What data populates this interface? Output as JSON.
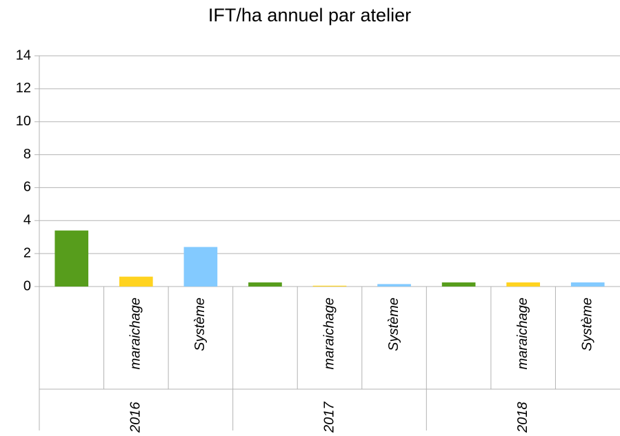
{
  "chart_data": {
    "type": "bar",
    "title": "IFT/ha annuel par atelier",
    "groups": [
      "2016",
      "2017",
      "2018"
    ],
    "categories": [
      null,
      "maraichage",
      "Système",
      null,
      "maraichage",
      "Système",
      null,
      "maraichage",
      "Système"
    ],
    "values": [
      3.4,
      0.6,
      2.4,
      0.25,
      0.05,
      0.15,
      0.25,
      0.25,
      0.25
    ],
    "colors": [
      "#579d1c",
      "#ffd320",
      "#83caff",
      "#579d1c",
      "#ffd320",
      "#83caff",
      "#579d1c",
      "#ffd320",
      "#83caff"
    ],
    "ylim": [
      0,
      14
    ],
    "yticks": [
      0,
      2,
      4,
      6,
      8,
      10,
      12,
      14
    ],
    "grid": true
  }
}
